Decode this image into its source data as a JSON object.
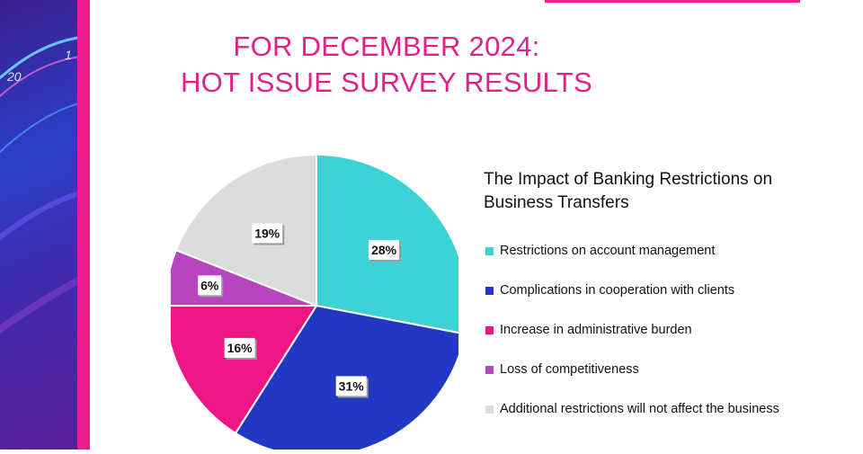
{
  "title": {
    "line1": "FOR DECEMBER 2024:",
    "line2": "HOT ISSUE SURVEY RESULTS"
  },
  "left_decor": {
    "dial_numbers": [
      "20",
      "1"
    ]
  },
  "colors": {
    "accent": "#ea1e8d",
    "title": "#e0218a"
  },
  "chart_data": {
    "type": "pie",
    "title": "The Impact of Banking Restrictions on Business Transfers",
    "legend_position": "right",
    "slices": [
      {
        "label": "Restrictions on account management",
        "value": 28,
        "value_label": "28%",
        "color": "#3dd3d6"
      },
      {
        "label": "Complications in cooperation with clients",
        "value": 31,
        "value_label": "31%",
        "color": "#2338c2"
      },
      {
        "label": "Increase in administrative burden",
        "value": 16,
        "value_label": "16%",
        "color": "#ee1685"
      },
      {
        "label": "Loss of competitiveness",
        "value": 6,
        "value_label": "6%",
        "color": "#b845c0"
      },
      {
        "label": "Additional restrictions will not affect the business",
        "value": 19,
        "value_label": "19%",
        "color": "#dcdcdc"
      }
    ]
  }
}
